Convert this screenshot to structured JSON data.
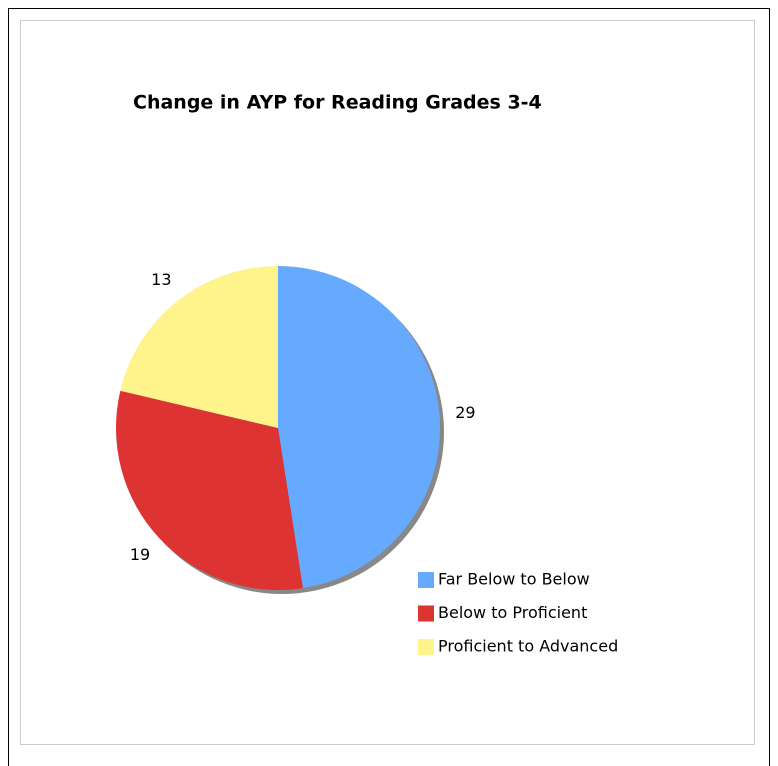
{
  "chart_data": {
    "type": "pie",
    "title": "Change in AYP for Reading Grades 3-4",
    "categories": [
      "Far Below to Below",
      "Below to Proficient",
      "Proficient to Advanced"
    ],
    "values": [
      29,
      19,
      13
    ],
    "colors": [
      "#66aaff",
      "#dd3333",
      "#fff48c"
    ]
  }
}
